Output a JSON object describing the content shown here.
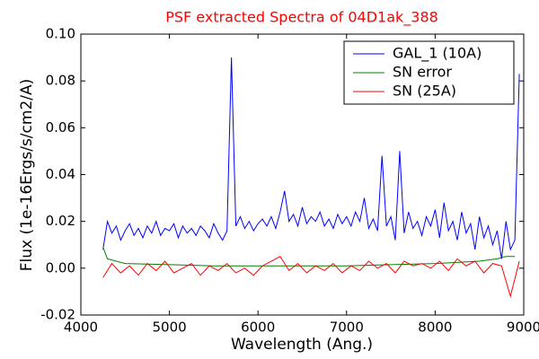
{
  "chart_data": {
    "type": "line",
    "title": "PSF extracted Spectra of 04D1ak_388",
    "xlabel": "Wavelength (Ang.)",
    "ylabel": "Flux (1e-16Ergs/s/cm2/A)",
    "xlim": [
      4000,
      9000
    ],
    "xticks": [
      4000,
      5000,
      6000,
      7000,
      8000,
      9000
    ],
    "ylim": [
      -0.02,
      0.1
    ],
    "yticks": [
      -0.02,
      {
        "value": 0,
        "label": "0.00"
      },
      0.02,
      0.04,
      0.06,
      0.08,
      {
        "value": 0.1,
        "label": "0.10"
      }
    ],
    "legend": "upper right",
    "series": [
      {
        "name": "GAL_1 (10A)",
        "color": "#0000ff",
        "x": [
          4250,
          4300,
          4350,
          4400,
          4450,
          4500,
          4550,
          4600,
          4650,
          4700,
          4750,
          4800,
          4850,
          4900,
          4950,
          5000,
          5050,
          5100,
          5150,
          5200,
          5250,
          5300,
          5350,
          5400,
          5450,
          5500,
          5550,
          5600,
          5650,
          5700,
          5750,
          5800,
          5850,
          5900,
          5950,
          6000,
          6050,
          6100,
          6150,
          6200,
          6250,
          6300,
          6350,
          6400,
          6450,
          6500,
          6550,
          6600,
          6650,
          6700,
          6750,
          6800,
          6850,
          6900,
          6950,
          7000,
          7050,
          7100,
          7150,
          7200,
          7250,
          7300,
          7350,
          7400,
          7450,
          7500,
          7550,
          7600,
          7650,
          7700,
          7750,
          7800,
          7850,
          7900,
          7950,
          8000,
          8050,
          8100,
          8150,
          8200,
          8250,
          8300,
          8350,
          8400,
          8450,
          8500,
          8550,
          8600,
          8650,
          8700,
          8750,
          8800,
          8850,
          8900,
          8950
        ],
        "values": [
          0.008,
          0.02,
          0.015,
          0.018,
          0.012,
          0.016,
          0.019,
          0.014,
          0.017,
          0.013,
          0.018,
          0.015,
          0.02,
          0.014,
          0.017,
          0.016,
          0.019,
          0.013,
          0.018,
          0.015,
          0.017,
          0.014,
          0.018,
          0.016,
          0.013,
          0.019,
          0.015,
          0.012,
          0.016,
          0.09,
          0.018,
          0.022,
          0.017,
          0.02,
          0.016,
          0.019,
          0.021,
          0.018,
          0.022,
          0.017,
          0.024,
          0.033,
          0.02,
          0.023,
          0.018,
          0.026,
          0.019,
          0.022,
          0.02,
          0.024,
          0.018,
          0.021,
          0.017,
          0.023,
          0.019,
          0.022,
          0.018,
          0.024,
          0.02,
          0.03,
          0.017,
          0.021,
          0.016,
          0.048,
          0.018,
          0.022,
          0.012,
          0.05,
          0.015,
          0.024,
          0.017,
          0.02,
          0.014,
          0.022,
          0.018,
          0.025,
          0.013,
          0.028,
          0.016,
          0.02,
          0.012,
          0.024,
          0.015,
          0.019,
          0.008,
          0.022,
          0.013,
          0.018,
          0.01,
          0.016,
          0.004,
          0.02,
          0.008,
          0.012,
          0.083
        ]
      },
      {
        "name": "SN error",
        "color": "#008000",
        "x": [
          4250,
          4300,
          4500,
          5000,
          5500,
          6000,
          6500,
          7000,
          7500,
          8000,
          8500,
          8700,
          8800,
          8900
        ],
        "values": [
          0.009,
          0.004,
          0.002,
          0.0015,
          0.001,
          0.001,
          0.001,
          0.001,
          0.0015,
          0.002,
          0.003,
          0.004,
          0.005,
          0.005
        ]
      },
      {
        "name": "SN (25A)",
        "color": "#ff0000",
        "x": [
          4250,
          4350,
          4450,
          4550,
          4650,
          4750,
          4850,
          4950,
          5050,
          5150,
          5250,
          5350,
          5450,
          5550,
          5650,
          5750,
          5850,
          5950,
          6050,
          6150,
          6250,
          6350,
          6450,
          6550,
          6650,
          6750,
          6850,
          6950,
          7050,
          7150,
          7250,
          7350,
          7450,
          7550,
          7650,
          7750,
          7850,
          7950,
          8050,
          8150,
          8250,
          8350,
          8450,
          8550,
          8650,
          8750,
          8850,
          8950
        ],
        "values": [
          -0.004,
          0.002,
          -0.002,
          0.001,
          -0.003,
          0.002,
          -0.001,
          0.003,
          -0.002,
          0,
          0.002,
          -0.003,
          0.001,
          -0.001,
          0.002,
          -0.002,
          0,
          -0.003,
          0.001,
          0.003,
          0.005,
          -0.001,
          0.002,
          -0.002,
          0.001,
          -0.001,
          0.002,
          -0.002,
          0.001,
          -0.001,
          0.003,
          0,
          0.002,
          -0.002,
          0.003,
          0.001,
          0.002,
          0,
          0.003,
          -0.001,
          0.004,
          0.001,
          0.003,
          -0.002,
          0.002,
          0.001,
          -0.012,
          0.003
        ]
      }
    ]
  }
}
